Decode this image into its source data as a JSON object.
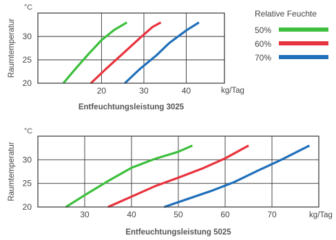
{
  "chart_data": [
    {
      "type": "line",
      "title": "",
      "xlabel": "kg/Tag",
      "ylabel": "Raumtemperatur",
      "y_unit": "°C",
      "caption": "Entfeuchtungsleistung 3025",
      "xlim": [
        5,
        49
      ],
      "ylim": [
        20,
        35
      ],
      "xticks": [
        20,
        30,
        40
      ],
      "yticks": [
        20,
        25,
        30
      ],
      "grid": true,
      "series": [
        {
          "name": "50%",
          "color": "#3cbf3c",
          "x": [
            11,
            14,
            17,
            20,
            23,
            26
          ],
          "y": [
            20,
            23.2,
            26.3,
            29.2,
            31.4,
            33
          ]
        },
        {
          "name": "60%",
          "color": "#e8323c",
          "x": [
            17.5,
            21,
            25,
            29,
            32,
            34
          ],
          "y": [
            20,
            23,
            26.3,
            29.6,
            32,
            33
          ]
        },
        {
          "name": "70%",
          "color": "#1f6fba",
          "x": [
            25.5,
            29,
            33,
            36,
            40,
            43
          ],
          "y": [
            20,
            23,
            26,
            28.6,
            31.3,
            33
          ]
        }
      ]
    },
    {
      "type": "line",
      "title": "",
      "xlabel": "kg/Tag",
      "ylabel": "Raumtemperatur",
      "y_unit": "°C",
      "caption": "Entfeuchtungsleistung 5025",
      "xlim": [
        20,
        80
      ],
      "ylim": [
        20,
        35
      ],
      "xticks": [
        30,
        40,
        50,
        60,
        70
      ],
      "yticks": [
        20,
        25,
        30
      ],
      "grid": true,
      "series": [
        {
          "name": "50%",
          "color": "#3cbf3c",
          "x": [
            26,
            30,
            35,
            40,
            45,
            50,
            53
          ],
          "y": [
            20,
            22.5,
            25.5,
            28.3,
            30.2,
            31.7,
            33
          ]
        },
        {
          "name": "60%",
          "color": "#e8323c",
          "x": [
            35,
            40,
            45,
            50,
            55,
            60,
            65
          ],
          "y": [
            20,
            22.2,
            24.4,
            26.2,
            28.1,
            30.3,
            33
          ]
        },
        {
          "name": "70%",
          "color": "#1f6fba",
          "x": [
            47,
            52,
            57,
            62,
            67,
            72,
            78
          ],
          "y": [
            20,
            21.7,
            23.4,
            25.3,
            27.7,
            30,
            33
          ]
        }
      ]
    }
  ],
  "legend": {
    "title": "Relative Feuchte",
    "items": [
      {
        "label": "50%",
        "color": "#3cbf3c"
      },
      {
        "label": "60%",
        "color": "#e8323c"
      },
      {
        "label": "70%",
        "color": "#1f6fba"
      }
    ]
  }
}
